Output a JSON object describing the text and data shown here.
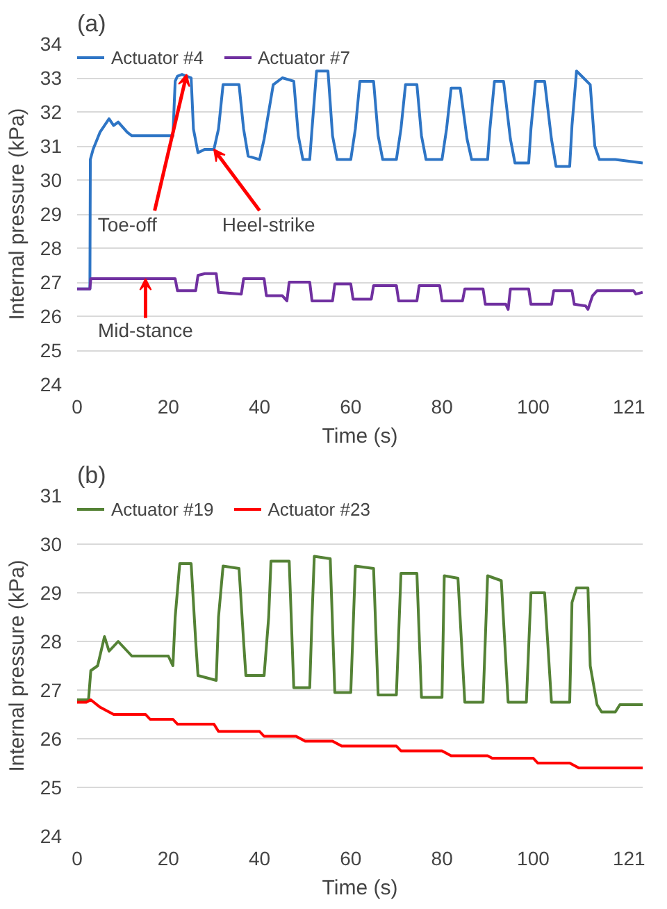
{
  "chart_data": [
    {
      "type": "line",
      "title": "(a)",
      "xlabel": "Time (s)",
      "ylabel": "Internal pressure (kPa)",
      "xlim": [
        0,
        124
      ],
      "xticks": [
        0,
        20,
        40,
        60,
        80,
        100,
        121
      ],
      "ylim": [
        24,
        34
      ],
      "yticks": [
        24,
        25,
        26,
        27,
        28,
        29,
        30,
        31,
        32,
        33,
        34
      ],
      "grid": "y",
      "legend": "top left",
      "series": [
        {
          "name": "Actuator #4",
          "color": "#2e75c5",
          "x": [
            0,
            2.8,
            2.9,
            3.5,
            5,
            7,
            8,
            9,
            11,
            12,
            14,
            21,
            21.5,
            22,
            23,
            25,
            25.5,
            26.5,
            28,
            30,
            31,
            32,
            35.5,
            36.5,
            37.5,
            40,
            41,
            43,
            45,
            47.5,
            48.5,
            49.5,
            51,
            51.5,
            52.5,
            55,
            56,
            57,
            60,
            61,
            62,
            65,
            66,
            67,
            70,
            71,
            72,
            74.5,
            75.5,
            76.5,
            80,
            81,
            82,
            84,
            85.5,
            86.5,
            90,
            90.5,
            91.5,
            93.5,
            95,
            96,
            99,
            99.5,
            100.5,
            102.5,
            104,
            105,
            108,
            108.5,
            109.5,
            111,
            112.5,
            113.5,
            114.5,
            118,
            124
          ],
          "values": [
            26.8,
            26.8,
            30.6,
            30.9,
            31.4,
            31.8,
            31.6,
            31.7,
            31.4,
            31.3,
            31.3,
            31.3,
            32.9,
            33.05,
            33.1,
            33.0,
            31.5,
            30.8,
            30.9,
            30.9,
            31.5,
            32.8,
            32.8,
            31.5,
            30.7,
            30.6,
            31.2,
            32.8,
            33.0,
            32.9,
            31.3,
            30.6,
            30.6,
            31.5,
            33.2,
            33.2,
            31.3,
            30.6,
            30.6,
            31.5,
            32.9,
            32.9,
            31.3,
            30.6,
            30.6,
            31.5,
            32.8,
            32.8,
            31.3,
            30.6,
            30.6,
            31.5,
            32.7,
            32.7,
            31.2,
            30.6,
            30.6,
            31.5,
            32.9,
            32.9,
            31.2,
            30.5,
            30.5,
            31.5,
            32.9,
            32.9,
            31.2,
            30.4,
            30.4,
            31.6,
            33.2,
            33.0,
            32.8,
            31.0,
            30.6,
            30.6,
            30.5
          ]
        },
        {
          "name": "Actuator #7",
          "color": "#7030a0",
          "x": [
            0,
            2.8,
            3,
            21.5,
            22,
            26,
            26.5,
            28,
            30.5,
            31,
            36,
            36.5,
            41,
            41.5,
            45,
            46,
            46.5,
            51,
            51.5,
            56,
            56.5,
            60,
            60.5,
            64.5,
            65,
            70,
            70.5,
            74.5,
            75,
            79.5,
            80,
            84.5,
            85,
            89,
            89.5,
            94,
            94.5,
            95,
            99,
            99.5,
            104,
            104.5,
            108.5,
            109,
            111.5,
            112,
            113,
            114,
            122,
            122.5,
            124
          ],
          "values": [
            26.8,
            26.8,
            27.1,
            27.1,
            26.75,
            26.75,
            27.2,
            27.25,
            27.25,
            26.7,
            26.65,
            27.1,
            27.1,
            26.6,
            26.6,
            26.45,
            27.0,
            27.0,
            26.45,
            26.45,
            26.95,
            26.95,
            26.5,
            26.5,
            26.9,
            26.9,
            26.45,
            26.45,
            26.9,
            26.9,
            26.45,
            26.45,
            26.8,
            26.8,
            26.35,
            26.35,
            26.2,
            26.8,
            26.8,
            26.35,
            26.35,
            26.75,
            26.75,
            26.35,
            26.3,
            26.2,
            26.6,
            26.75,
            26.75,
            26.65,
            26.7
          ]
        }
      ],
      "annotations": [
        {
          "text": "Toe-off",
          "x": 24,
          "y": 33.1
        },
        {
          "text": "Heel-strike",
          "x": 30,
          "y": 30.9
        },
        {
          "text": "Mid-stance",
          "x": 15,
          "y": 27.1
        }
      ]
    },
    {
      "type": "line",
      "title": "(b)",
      "xlabel": "Time (s)",
      "ylabel": "Internal pressure (kPa)",
      "xlim": [
        0,
        124
      ],
      "xticks": [
        0,
        20,
        40,
        60,
        80,
        100,
        121
      ],
      "ylim": [
        24,
        31
      ],
      "yticks": [
        24,
        25,
        26,
        27,
        28,
        29,
        30,
        31
      ],
      "grid": "y",
      "legend": "top left",
      "series": [
        {
          "name": "Actuator #19",
          "color": "#548235",
          "x": [
            0,
            2.5,
            3,
            4.5,
            6,
            7,
            9,
            11,
            12,
            20,
            21,
            21.5,
            22.5,
            25,
            26,
            26.5,
            30.5,
            31,
            32,
            35.5,
            36.5,
            37,
            41,
            42,
            42.5,
            46.5,
            47.5,
            51,
            51.5,
            52,
            55.5,
            56.5,
            60,
            61,
            65,
            66,
            70,
            71,
            74.5,
            75.5,
            80,
            80.5,
            83.5,
            85,
            89,
            90,
            93,
            94.5,
            98.5,
            99.5,
            102.5,
            104,
            108,
            108.5,
            109.5,
            112,
            112.5,
            114,
            115,
            118,
            119,
            124
          ],
          "values": [
            26.8,
            26.8,
            27.4,
            27.5,
            28.1,
            27.8,
            28.0,
            27.8,
            27.7,
            27.7,
            27.5,
            28.5,
            29.6,
            29.6,
            28.0,
            27.3,
            27.2,
            28.5,
            29.55,
            29.5,
            28.0,
            27.3,
            27.3,
            28.5,
            29.65,
            29.65,
            27.05,
            27.05,
            28.5,
            29.75,
            29.7,
            26.95,
            26.95,
            29.55,
            29.5,
            26.9,
            26.9,
            29.4,
            29.4,
            26.85,
            26.85,
            29.35,
            29.3,
            26.75,
            26.75,
            29.35,
            29.25,
            26.75,
            26.75,
            29.0,
            29.0,
            26.75,
            26.75,
            28.8,
            29.1,
            29.1,
            27.5,
            26.7,
            26.55,
            26.55,
            26.7,
            26.7
          ]
        },
        {
          "name": "Actuator #23",
          "color": "#ff0000",
          "x": [
            0,
            2,
            3,
            5,
            8,
            15,
            16,
            21,
            22,
            30,
            31,
            40,
            41,
            48,
            50,
            56,
            58,
            70,
            71,
            80,
            82,
            90,
            91,
            100,
            101,
            108,
            110,
            124
          ],
          "values": [
            26.75,
            26.75,
            26.8,
            26.65,
            26.5,
            26.5,
            26.4,
            26.4,
            26.3,
            26.3,
            26.15,
            26.15,
            26.05,
            26.05,
            25.95,
            25.95,
            25.85,
            25.85,
            25.75,
            25.75,
            25.65,
            25.65,
            25.6,
            25.6,
            25.5,
            25.5,
            25.4,
            25.4
          ]
        }
      ]
    }
  ]
}
